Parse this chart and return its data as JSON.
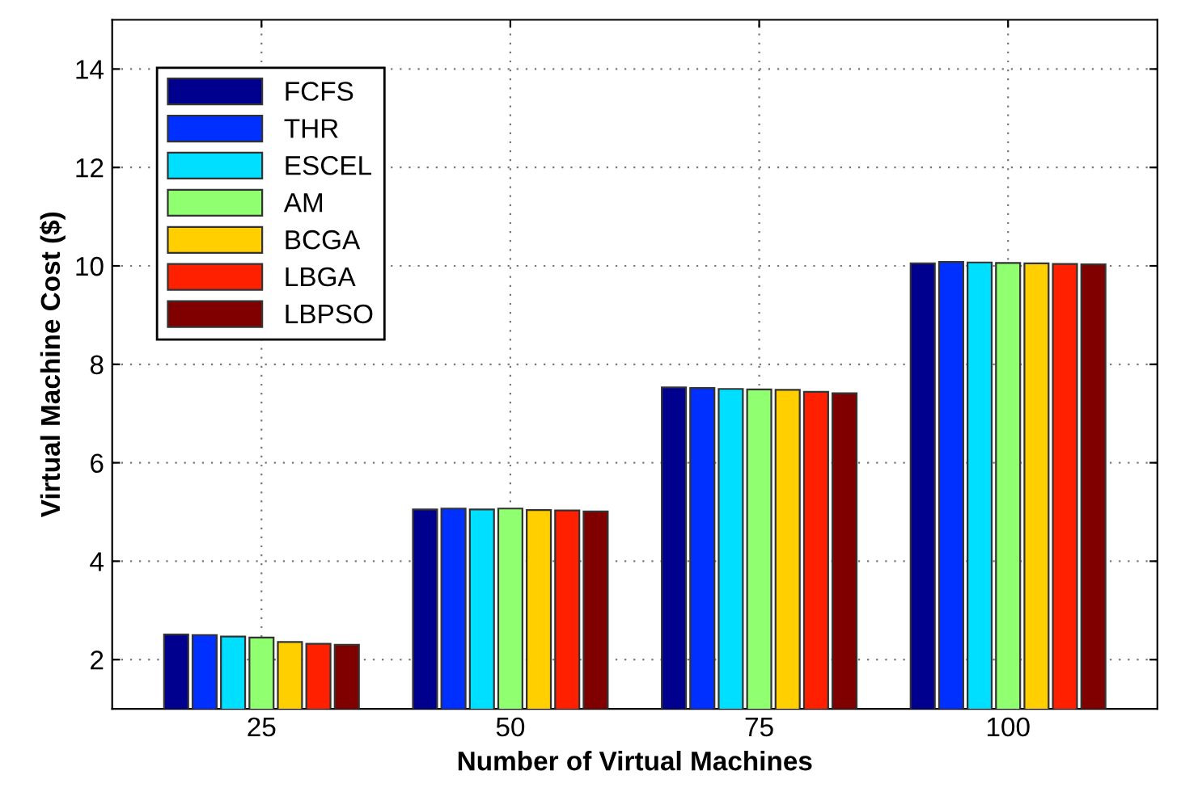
{
  "chart_data": {
    "type": "bar",
    "xlabel": "Number of Virtual Machines",
    "ylabel": "Virtual Machine Cost ($)",
    "categories": [
      "25",
      "50",
      "75",
      "100"
    ],
    "series": [
      {
        "name": "FCFS",
        "color": "#00008f",
        "values": [
          2.51,
          5.05,
          7.53,
          10.05
        ]
      },
      {
        "name": "THR",
        "color": "#0030ff",
        "values": [
          2.5,
          5.07,
          7.52,
          10.08
        ]
      },
      {
        "name": "ESCEL",
        "color": "#00dfff",
        "values": [
          2.47,
          5.05,
          7.5,
          10.07
        ]
      },
      {
        "name": "AM",
        "color": "#90ff70",
        "values": [
          2.45,
          5.07,
          7.49,
          10.06
        ]
      },
      {
        "name": "BCGA",
        "color": "#ffcf00",
        "values": [
          2.36,
          5.04,
          7.48,
          10.05
        ]
      },
      {
        "name": "LBGA",
        "color": "#ff2000",
        "values": [
          2.32,
          5.03,
          7.44,
          10.04
        ]
      },
      {
        "name": "LBPSO",
        "color": "#800000",
        "values": [
          2.3,
          5.01,
          7.41,
          10.03
        ]
      }
    ],
    "ylim": [
      1,
      15
    ],
    "yticks": [
      2,
      4,
      6,
      8,
      10,
      12,
      14
    ],
    "grid": true,
    "legend": "top left"
  }
}
